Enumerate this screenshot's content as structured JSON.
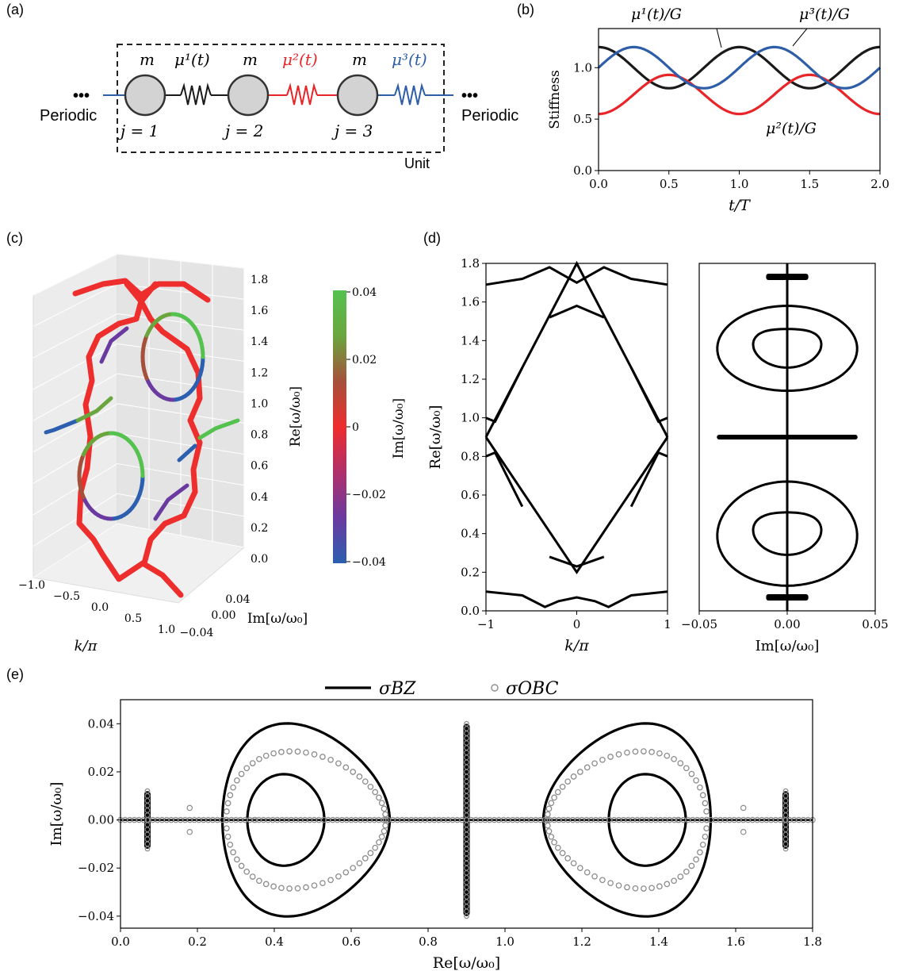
{
  "panel_labels": {
    "a": "(a)",
    "b": "(b)",
    "c": "(c)",
    "d": "(d)",
    "e": "(e)"
  },
  "schematic": {
    "mass_label": "m",
    "spring_labels": [
      "μ¹(t)",
      "μ²(t)",
      "μ³(t)"
    ],
    "site_labels": [
      "j = 1",
      "j = 2",
      "j = 3"
    ],
    "left_text": "Periodic",
    "right_text": "Periodic",
    "ellipsis": "•••",
    "unit_label": "Unit",
    "colors": {
      "spring1": "#1a1a1a",
      "spring2": "#e8262a",
      "spring3": "#2f5ea8",
      "mass_fill": "#d3d3d3"
    }
  },
  "chart_data": [
    {
      "id": "b",
      "type": "line",
      "xlabel": "t/T",
      "ylabel": "Stiffness",
      "xlim": [
        0,
        2
      ],
      "ylim": [
        0,
        1.38
      ],
      "xticks": [
        "0.0",
        "0.5",
        "1.0",
        "1.5",
        "2.0"
      ],
      "yticks": [
        "0.0",
        "0.5",
        "1.0"
      ],
      "series": [
        {
          "name": "μ¹(t)/G",
          "color": "#1a1a1a",
          "x": [
            0,
            0.125,
            0.25,
            0.375,
            0.5,
            0.625,
            0.75,
            0.875,
            1.0,
            1.125,
            1.25,
            1.375,
            1.5,
            1.625,
            1.75,
            1.875,
            2.0
          ],
          "y": [
            1.2,
            1.15,
            1.0,
            0.86,
            0.8,
            0.86,
            1.0,
            1.15,
            1.2,
            1.15,
            1.0,
            0.86,
            0.8,
            0.86,
            1.0,
            1.15,
            1.2
          ]
        },
        {
          "name": "μ²(t)/G",
          "color": "#e8262a",
          "x": [
            0,
            0.125,
            0.25,
            0.375,
            0.5,
            0.625,
            0.75,
            0.875,
            1.0,
            1.125,
            1.25,
            1.375,
            1.5,
            1.625,
            1.75,
            1.875,
            2.0
          ],
          "y": [
            0.55,
            0.6,
            0.74,
            0.88,
            0.93,
            0.88,
            0.74,
            0.6,
            0.55,
            0.6,
            0.74,
            0.88,
            0.93,
            0.88,
            0.74,
            0.6,
            0.55
          ]
        },
        {
          "name": "μ³(t)/G",
          "color": "#2f5ea8",
          "x": [
            0,
            0.125,
            0.25,
            0.375,
            0.5,
            0.625,
            0.75,
            0.875,
            1.0,
            1.125,
            1.25,
            1.375,
            1.5,
            1.625,
            1.75,
            1.875,
            2.0
          ],
          "y": [
            1.0,
            1.14,
            1.2,
            1.14,
            1.0,
            0.86,
            0.8,
            0.86,
            1.0,
            1.14,
            1.2,
            1.14,
            1.0,
            0.86,
            0.8,
            0.86,
            1.0
          ]
        }
      ]
    },
    {
      "id": "c",
      "type": "scatter",
      "xlabel": "k/π",
      "ylabel": "Im[ω/ω₀]",
      "zlabel": "Re[ω/ω₀]",
      "xticks": [
        "−1.0",
        "−0.5",
        "0.0",
        "0.5",
        "1.0"
      ],
      "yticks": [
        "−0.04",
        "0.00",
        "0.04"
      ],
      "zticks": [
        "0.0",
        "0.2",
        "0.4",
        "0.6",
        "0.8",
        "1.0",
        "1.2",
        "1.4",
        "1.6",
        "1.8"
      ],
      "colorbar": {
        "label": "Im[ω/ω₀]",
        "ticks": [
          "0.04",
          "0.02",
          "0",
          "−0.02",
          "−0.04"
        ],
        "range": [
          -0.04,
          0.04
        ],
        "colors": [
          "#2c5fb0",
          "#6b3aa0",
          "#b0306a",
          "#ee2d2d",
          "#a5503a",
          "#6aa63e",
          "#55c24f"
        ]
      }
    },
    {
      "id": "d_left",
      "type": "line",
      "xlabel": "k/π",
      "ylabel": "Re[ω/ω₀]",
      "xlim": [
        -1,
        1
      ],
      "ylim": [
        0,
        1.8
      ],
      "xticks": [
        "−1",
        "0",
        "1"
      ],
      "yticks": [
        "0.0",
        "0.2",
        "0.4",
        "0.6",
        "0.8",
        "1.0",
        "1.2",
        "1.4",
        "1.6",
        "1.8"
      ]
    },
    {
      "id": "d_right",
      "type": "line",
      "xlabel": "Im[ω/ω₀]",
      "xlim": [
        -0.05,
        0.05
      ],
      "ylim": [
        0,
        1.8
      ],
      "xticks": [
        "−0.05",
        "0.00",
        "0.05"
      ]
    },
    {
      "id": "e",
      "type": "scatter",
      "xlabel": "Re[ω/ω₀]",
      "ylabel": "Im[ω/ω₀]",
      "xlim": [
        0,
        1.8
      ],
      "ylim": [
        -0.045,
        0.05
      ],
      "xticks": [
        "0.0",
        "0.2",
        "0.4",
        "0.6",
        "0.8",
        "1.0",
        "1.2",
        "1.4",
        "1.6",
        "1.8"
      ],
      "yticks": [
        "−0.04",
        "−0.02",
        "0.00",
        "0.02",
        "0.04"
      ],
      "legend": {
        "placement": "top",
        "entries": [
          "σBZ",
          "σOBC"
        ]
      },
      "series": [
        {
          "name": "σBZ",
          "style": "line",
          "color": "#000000"
        },
        {
          "name": "σOBC",
          "style": "open-circles",
          "color": "#8c8c8c"
        }
      ],
      "loops": [
        {
          "center": 0.42,
          "outer": [
            0.265,
            0.7,
            0.039
          ],
          "inner": [
            0.33,
            0.53,
            0.019
          ],
          "obc": [
            0.275,
            0.69,
            0.028
          ]
        },
        {
          "center": 1.38,
          "outer": [
            1.1,
            1.535,
            0.039
          ],
          "inner": [
            1.27,
            1.47,
            0.019
          ],
          "obc": [
            1.11,
            1.525,
            0.028
          ]
        }
      ],
      "vertical_bars": [
        {
          "x": 0.07,
          "amp": 0.012
        },
        {
          "x": 0.9,
          "amp": 0.04
        },
        {
          "x": 1.73,
          "amp": 0.012
        }
      ]
    }
  ]
}
